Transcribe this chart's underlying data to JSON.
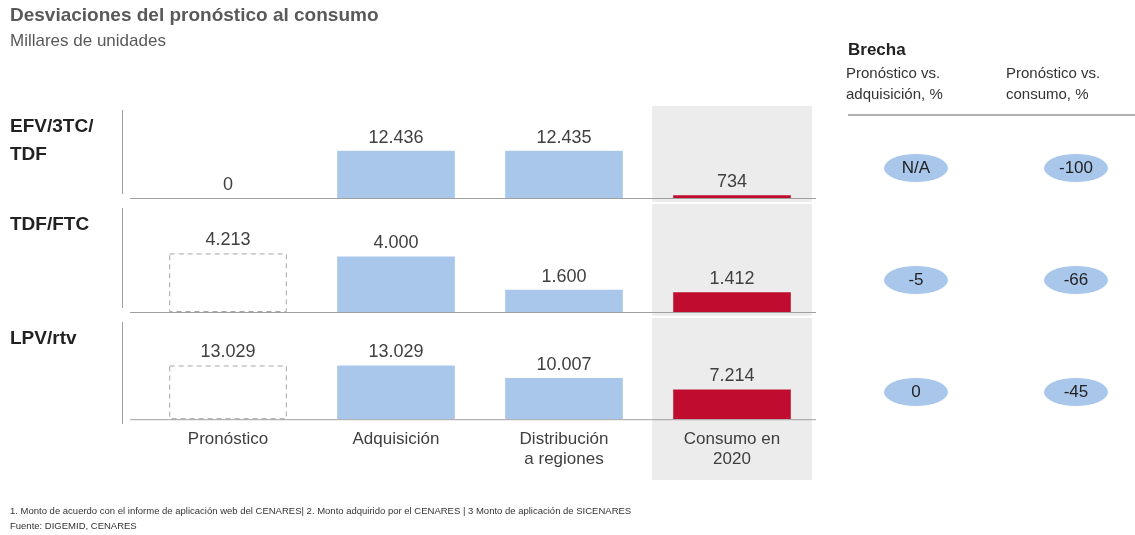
{
  "chart_data": [
    {
      "type": "bar",
      "title": "Desviaciones del pronóstico al consumo",
      "subtitle": "Millares de unidades",
      "ylabel": "EFV/3TC/TDF",
      "categories": [
        "Pronóstico",
        "Adquisición",
        "Distribución a regiones",
        "Consumo en 2020"
      ],
      "series": [
        {
          "type": "bar",
          "color": "#a6a6a6",
          "line_style": "dashed",
          "values": [
            0,
            null,
            null,
            null
          ],
          "value_labels": [
            "0",
            null,
            null,
            null
          ]
        },
        {
          "type": "bar",
          "colors": [
            null,
            "#a9c6eb",
            "#a9c6eb",
            "#c00d2f"
          ],
          "values": [
            null,
            12436,
            12435,
            734
          ],
          "value_labels": [
            null,
            "12.436",
            "12.435",
            "734"
          ]
        }
      ],
      "bands": [
        {
          "axis": "x",
          "from": "Consumo en 2020",
          "to": "Consumo en 2020",
          "color": "#ececec"
        }
      ],
      "tick_labels": false,
      "grid": false,
      "legend": false
    },
    {
      "type": "bar",
      "ylabel": "TDF/FTC",
      "categories": [
        "Pronóstico",
        "Adquisición",
        "Distribución a regiones",
        "Consumo en 2020"
      ],
      "series": [
        {
          "type": "bar",
          "color": "#a6a6a6",
          "line_style": "dashed",
          "values": [
            4213,
            null,
            null,
            null
          ],
          "value_labels": [
            "4.213",
            null,
            null,
            null
          ]
        },
        {
          "type": "bar",
          "colors": [
            null,
            "#a9c6eb",
            "#a9c6eb",
            "#c00d2f"
          ],
          "values": [
            null,
            4000,
            1600,
            1412
          ],
          "value_labels": [
            null,
            "4.000",
            "1.600",
            "1.412"
          ]
        }
      ],
      "bands": [
        {
          "axis": "x",
          "from": "Consumo en 2020",
          "to": "Consumo en 2020",
          "color": "#ececec"
        }
      ],
      "tick_labels": false,
      "grid": false,
      "legend": false
    },
    {
      "type": "bar",
      "ylabel": "LPV/rtv",
      "categories": [
        "Pronóstico",
        "Adquisición",
        "Distribución a regiones",
        "Consumo en 2020"
      ],
      "series": [
        {
          "type": "bar",
          "color": "#a6a6a6",
          "line_style": "dashed",
          "values": [
            13029,
            null,
            null,
            null
          ],
          "value_labels": [
            "13.029",
            null,
            null,
            null
          ]
        },
        {
          "type": "bar",
          "colors": [
            null,
            "#a9c6eb",
            "#a9c6eb",
            "#c00d2f"
          ],
          "values": [
            null,
            13029,
            10007,
            7214
          ],
          "value_labels": [
            null,
            "13.029",
            "10.007",
            "7.214"
          ]
        }
      ],
      "bands": [
        {
          "axis": "x",
          "from": "Consumo en 2020",
          "to": "Consumo en 2020",
          "color": "#ececec"
        }
      ],
      "tick_labels": "x",
      "grid": false,
      "legend": false,
      "annotations": [
        "1. Monto de acuerdo con el informe de aplicación web del CENARES| 2. Monto adquirido por el CENARES | 3 Monto de aplicación de SICENARES",
        "Fuente: DIGEMID, CENARES"
      ]
    },
    {
      "type": "other",
      "title": "Brecha",
      "categories": [
        "Pronóstico vs. adquisición, %",
        "Pronóstico vs. consumo, %"
      ],
      "color": "#a9c6eb",
      "cell_labels": [
        [
          "N/A",
          "-100"
        ],
        [
          "-5",
          "-66"
        ],
        [
          "0",
          "-45"
        ]
      ]
    }
  ]
}
